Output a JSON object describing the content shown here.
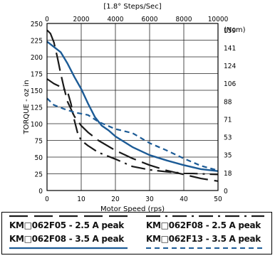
{
  "chart_data": {
    "type": "line",
    "xlabel": "Motor Speed (rps)",
    "ylabel": "TORQUE - oz in",
    "top_axis_label": "[1.8° Steps/Sec]",
    "right_axis_unit": "(Ncm)",
    "xlim": [
      0,
      50
    ],
    "ylim": [
      0,
      250
    ],
    "x_ticks": [
      "0",
      "10",
      "20",
      "30",
      "40",
      "50"
    ],
    "y_ticks": [
      "0",
      "25",
      "50",
      "75",
      "100",
      "125",
      "150",
      "175",
      "200",
      "225",
      "250"
    ],
    "top_ticks": [
      "0",
      "2000",
      "4000",
      "6000",
      "8000",
      "10000"
    ],
    "right_ticks": [
      "0",
      "18",
      "35",
      "53",
      "71",
      "88",
      "106",
      "124",
      "141",
      "159"
    ],
    "grid": true,
    "legend_position": "below",
    "series": [
      {
        "name": "KM□062F05 - 2.5 A peak",
        "color": "#1a1a1a",
        "style": "longdash",
        "x": [
          0,
          1,
          2,
          3,
          4,
          5,
          6,
          8,
          10,
          12,
          15,
          20,
          25,
          30,
          35,
          40,
          45,
          50
        ],
        "y": [
          240,
          235,
          222,
          200,
          175,
          153,
          133,
          111,
          97,
          87,
          75,
          60,
          48,
          38,
          30,
          24,
          18,
          14
        ]
      },
      {
        "name": "KM□062F08 - 2.5 A peak",
        "color": "#1a1a1a",
        "style": "dashdot",
        "x": [
          0,
          2,
          4,
          6,
          7,
          8,
          9,
          10,
          12,
          15,
          20,
          25,
          30,
          35,
          40,
          45,
          50
        ],
        "y": [
          167,
          160,
          155,
          148,
          130,
          105,
          85,
          75,
          67,
          57,
          47,
          36,
          31,
          28,
          26,
          25,
          24
        ]
      },
      {
        "name": "KM□062F08 - 3.5 A peak",
        "color": "#1c5b96",
        "style": "solid",
        "x": [
          0,
          2,
          4,
          6,
          8,
          10,
          12,
          14,
          16,
          18,
          20,
          25,
          30,
          35,
          40,
          45,
          50
        ],
        "y": [
          223,
          215,
          207,
          190,
          170,
          152,
          130,
          110,
          97,
          90,
          81,
          65,
          53,
          45,
          38,
          32,
          29
        ]
      },
      {
        "name": "KM□062F13 - 3.5 A peak",
        "color": "#1c5b96",
        "style": "shortdash",
        "x": [
          0,
          2,
          5,
          8,
          10,
          12,
          15,
          20,
          25,
          30,
          35,
          40,
          45,
          50
        ],
        "y": [
          138,
          128,
          122,
          117,
          115,
          113,
          103,
          92,
          86,
          71,
          60,
          48,
          37,
          30
        ]
      }
    ]
  }
}
